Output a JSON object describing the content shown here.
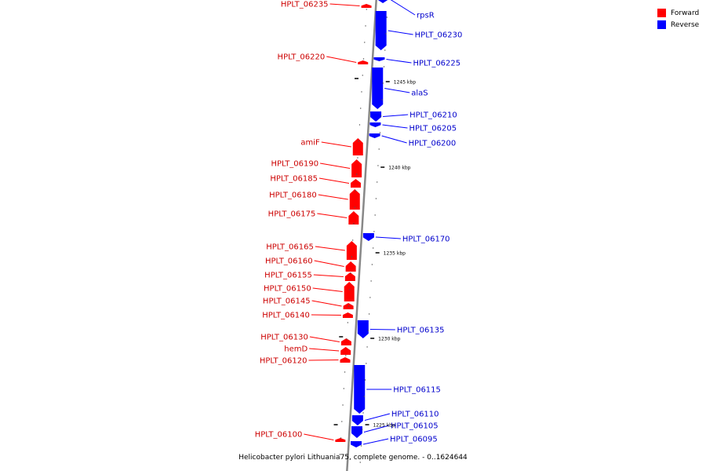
{
  "caption": "Helicobacter pylori Lithuania75, complete genome. - 0..1624644",
  "legend": [
    {
      "label": "Forward",
      "color": "#ff0000"
    },
    {
      "label": "Reverse",
      "color": "#0000ff"
    }
  ],
  "colors": {
    "forward": "#ff0000",
    "reverse": "#0000ff",
    "forward_text": "#cc0000",
    "reverse_text": "#0000cc",
    "backbone": "#888888"
  },
  "scale_labels": [
    "1245 kbp",
    "1240 kbp",
    "1235 kbp",
    "1230 kbp",
    "1225 kbp"
  ],
  "genes_forward": [
    {
      "label": "HPLT_06235"
    },
    {
      "label": "HPLT_06220"
    },
    {
      "label": "amiF"
    },
    {
      "label": "HPLT_06190"
    },
    {
      "label": "HPLT_06185"
    },
    {
      "label": "HPLT_06180"
    },
    {
      "label": "HPLT_06175"
    },
    {
      "label": "HPLT_06165"
    },
    {
      "label": "HPLT_06160"
    },
    {
      "label": "HPLT_06155"
    },
    {
      "label": "HPLT_06150"
    },
    {
      "label": "HPLT_06145"
    },
    {
      "label": "HPLT_06140"
    },
    {
      "label": "HPLT_06130"
    },
    {
      "label": "hemD"
    },
    {
      "label": "HPLT_06120"
    },
    {
      "label": "HPLT_06100"
    }
  ],
  "genes_reverse": [
    {
      "label": "rpsR"
    },
    {
      "label": "HPLT_06230"
    },
    {
      "label": "HPLT_06225"
    },
    {
      "label": "alaS"
    },
    {
      "label": "HPLT_06210"
    },
    {
      "label": "HPLT_06205"
    },
    {
      "label": "HPLT_06200"
    },
    {
      "label": "HPLT_06170"
    },
    {
      "label": "HPLT_06135"
    },
    {
      "label": "HPLT_06115"
    },
    {
      "label": "HPLT_06110"
    },
    {
      "label": "HPLT_06105"
    },
    {
      "label": "HPLT_06095"
    }
  ]
}
